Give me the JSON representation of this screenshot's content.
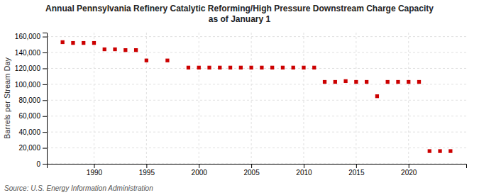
{
  "chart_data": {
    "type": "scatter",
    "title": "Annual Pennsylvania Refinery Catalytic Reforming/High Pressure Downstream Charge Capacity\nas of January 1",
    "ylabel": "Barrels per Stream Day",
    "source": "Source: U.S. Energy Information Administration",
    "color": "#cc0000",
    "marker": "square",
    "grid": true,
    "x": [
      1987,
      1988,
      1989,
      1990,
      1991,
      1992,
      1993,
      1994,
      1995,
      1997,
      1999,
      2000,
      2001,
      2002,
      2003,
      2004,
      2005,
      2006,
      2007,
      2008,
      2009,
      2010,
      2011,
      2012,
      2013,
      2014,
      2015,
      2016,
      2017,
      2018,
      2019,
      2020,
      2021,
      2022,
      2023,
      2024
    ],
    "values": [
      153000,
      152000,
      152000,
      152000,
      144000,
      144000,
      143000,
      143000,
      130000,
      130000,
      121000,
      121000,
      121000,
      121000,
      121000,
      121000,
      121000,
      121000,
      121000,
      121000,
      121000,
      121000,
      121000,
      103000,
      103000,
      104000,
      103000,
      103000,
      85000,
      103000,
      103000,
      103000,
      103000,
      16000,
      16000,
      16000
    ],
    "xlim": [
      1985.5,
      2025.5
    ],
    "xticks": [
      1990,
      1995,
      2000,
      2005,
      2010,
      2015,
      2020
    ],
    "ylim": [
      0,
      165000
    ],
    "yticks": [
      0,
      {
        "value": 20000,
        "label": "20,000"
      },
      {
        "value": 40000,
        "label": "40,000"
      },
      {
        "value": 60000,
        "label": "60,000"
      },
      {
        "value": 80000,
        "label": "80,000"
      },
      {
        "value": 100000,
        "label": "100,000"
      },
      {
        "value": 120000,
        "label": "120,000"
      },
      {
        "value": 140000,
        "label": "140,000"
      },
      {
        "value": 160000,
        "label": "160,000"
      }
    ]
  }
}
